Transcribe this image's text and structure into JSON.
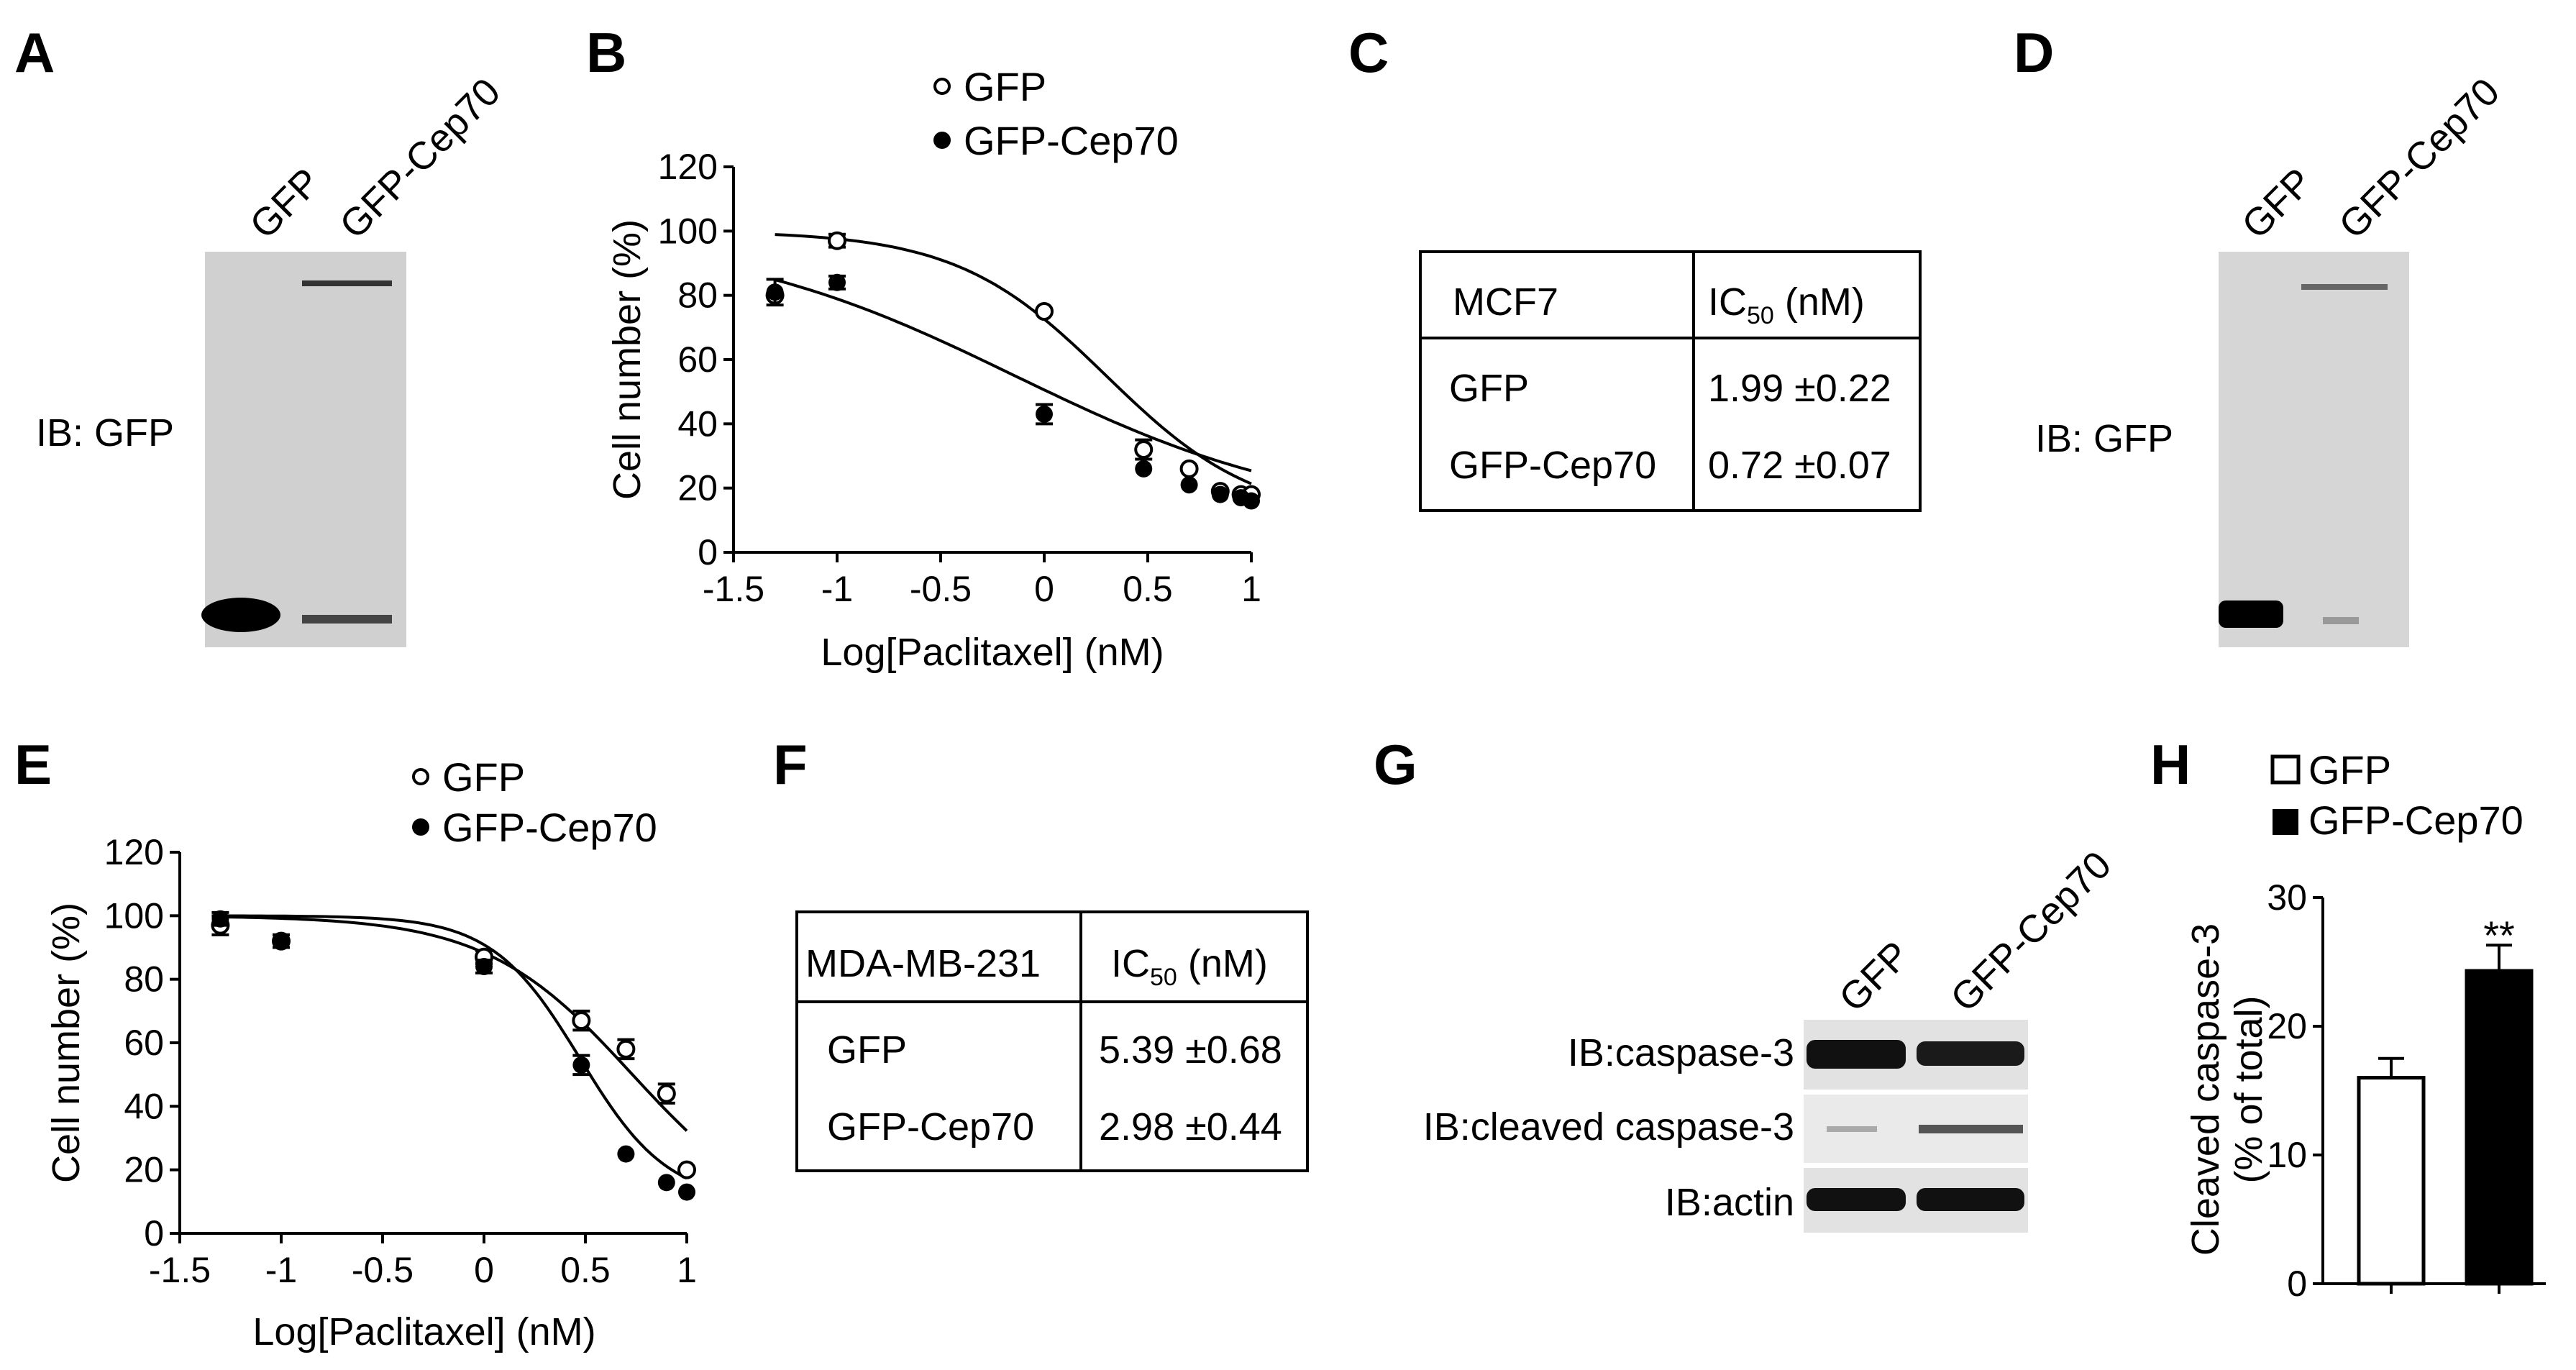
{
  "panels": {
    "a": {
      "label": "A",
      "lanes": [
        "GFP",
        "GFP-Cep70"
      ],
      "ib": "IB: GFP"
    },
    "b": {
      "label": "B",
      "ylabel": "Cell number (%)",
      "xlabel": "Log[Paclitaxel] (nM)",
      "legend": [
        "GFP",
        "GFP-Cep70"
      ],
      "xticks": [
        "-1.5",
        "-1",
        "-0.5",
        "0",
        "0.5",
        "1"
      ],
      "yticks": [
        "0",
        "20",
        "40",
        "60",
        "80",
        "100",
        "120"
      ]
    },
    "c": {
      "label": "C",
      "header": [
        "MCF7",
        "IC",
        "50",
        " (nM)"
      ],
      "rows": [
        [
          "GFP",
          "1.99 ±0.22"
        ],
        [
          "GFP-Cep70",
          "0.72 ±0.07"
        ]
      ]
    },
    "d": {
      "label": "D",
      "lanes": [
        "GFP",
        "GFP-Cep70"
      ],
      "ib": "IB: GFP"
    },
    "e": {
      "label": "E",
      "ylabel": "Cell number (%)",
      "xlabel": "Log[Paclitaxel] (nM)",
      "legend": [
        "GFP",
        "GFP-Cep70"
      ],
      "xticks": [
        "-1.5",
        "-1",
        "-0.5",
        "0",
        "0.5",
        "1"
      ],
      "yticks": [
        "0",
        "20",
        "40",
        "60",
        "80",
        "100",
        "120"
      ]
    },
    "f": {
      "label": "F",
      "header": [
        "MDA-MB-231",
        "IC",
        "50",
        " (nM)"
      ],
      "rows": [
        [
          "GFP",
          "5.39 ±0.68"
        ],
        [
          "GFP-Cep70",
          "2.98 ±0.44"
        ]
      ]
    },
    "g": {
      "label": "G",
      "lanes": [
        "GFP",
        "GFP-Cep70"
      ],
      "blots": [
        "IB:caspase-3",
        "IB:cleaved caspase-3",
        "IB:actin"
      ]
    },
    "h": {
      "label": "H",
      "legend": [
        "GFP",
        "GFP-Cep70"
      ],
      "ylabel_line1": "Cleaved caspase-3",
      "ylabel_line2": "(% of total)",
      "yticks": [
        "0",
        "10",
        "20",
        "30"
      ],
      "significance": "**"
    }
  },
  "chart_data": [
    {
      "panel": "B",
      "type": "scatter",
      "xlabel": "Log[Paclitaxel] (nM)",
      "ylabel": "Cell number (%)",
      "xlim": [
        -1.5,
        1
      ],
      "ylim": [
        0,
        120
      ],
      "series": [
        {
          "name": "GFP",
          "marker": "open-circle",
          "x": [
            -1.3,
            -1,
            0,
            0.48,
            0.7,
            0.85,
            0.95,
            1
          ],
          "y": [
            80,
            97,
            75,
            32,
            26,
            19,
            18,
            18
          ],
          "err": [
            0,
            2,
            0,
            3,
            0,
            0,
            0,
            0
          ],
          "fit": {
            "top": 100,
            "bottom": 10,
            "logIC50": 0.299,
            "hill": 1.2
          }
        },
        {
          "name": "GFP-Cep70",
          "marker": "filled-circle",
          "x": [
            -1.3,
            -1,
            0,
            0.48,
            0.7,
            0.85,
            0.95,
            1
          ],
          "y": [
            81,
            84,
            43,
            26,
            21,
            18,
            17,
            16
          ],
          "err": [
            4,
            2,
            3,
            0,
            0,
            0,
            0,
            0
          ],
          "fit": {
            "top": 100,
            "bottom": 10,
            "logIC50": -0.143,
            "hill": 0.6
          }
        }
      ]
    },
    {
      "panel": "E",
      "type": "scatter",
      "xlabel": "Log[Paclitaxel] (nM)",
      "ylabel": "Cell number (%)",
      "xlim": [
        -1.5,
        1
      ],
      "ylim": [
        0,
        120
      ],
      "series": [
        {
          "name": "GFP",
          "marker": "open-circle",
          "x": [
            -1.3,
            -1,
            0,
            0.48,
            0.7,
            0.9,
            1
          ],
          "y": [
            97,
            92,
            87,
            67,
            58,
            44,
            20
          ],
          "err": [
            3,
            2,
            2,
            3,
            3,
            3,
            0
          ],
          "fit": {
            "top": 100,
            "bottom": 0,
            "logIC50": 0.732,
            "hill": 1.2
          }
        },
        {
          "name": "GFP-Cep70",
          "marker": "filled-circle",
          "x": [
            -1.3,
            -1,
            0,
            0.48,
            0.7,
            0.9,
            1
          ],
          "y": [
            99,
            92,
            84,
            53,
            25,
            16,
            13
          ],
          "err": [
            2,
            2,
            2,
            3,
            0,
            0,
            0
          ],
          "fit": {
            "top": 100,
            "bottom": 10,
            "logIC50": 0.474,
            "hill": 2.0
          }
        }
      ]
    },
    {
      "panel": "H",
      "type": "bar",
      "categories": [
        "GFP",
        "GFP-Cep70"
      ],
      "values": [
        16,
        24.3
      ],
      "errors": [
        1.5,
        2
      ],
      "fills": [
        "#ffffff",
        "#000000"
      ],
      "ylim": [
        0,
        30
      ]
    }
  ]
}
